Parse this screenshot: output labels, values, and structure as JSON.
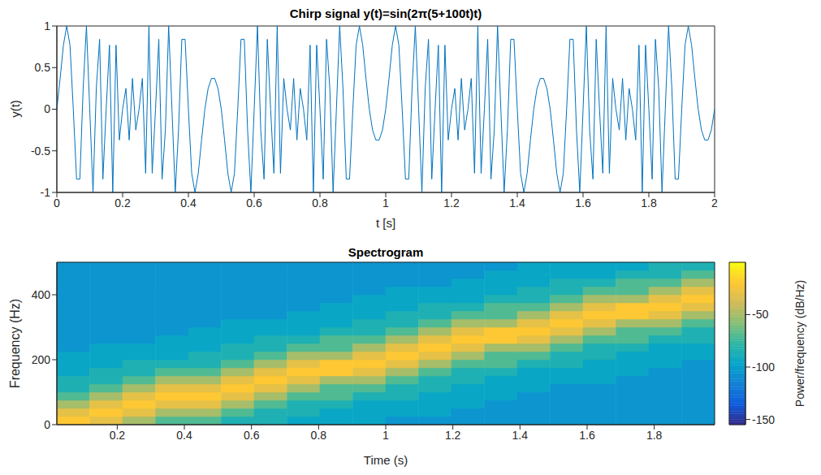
{
  "chart_data": [
    {
      "type": "line",
      "title": "Chirp signal y(t)=sin(2π(5+100t)t)",
      "xlabel": "t [s]",
      "ylabel": "y(t)",
      "color": "#0072bd",
      "x": [
        0,
        0.01,
        0.02,
        0.03,
        0.04,
        0.05,
        0.06,
        0.07,
        0.08,
        0.09,
        0.1,
        0.11,
        0.12,
        0.13,
        0.14,
        0.15,
        0.16,
        0.17,
        0.18,
        0.19,
        0.2,
        0.21,
        0.22,
        0.23,
        0.24,
        0.25,
        0.26,
        0.27,
        0.28,
        0.29,
        0.3,
        0.31,
        0.32,
        0.33,
        0.34,
        0.35,
        0.36,
        0.37,
        0.38,
        0.39,
        0.4,
        0.41,
        0.42,
        0.43,
        0.44,
        0.45,
        0.46,
        0.47,
        0.48,
        0.49,
        0.5,
        0.51,
        0.52,
        0.53,
        0.54,
        0.55,
        0.56,
        0.57,
        0.58,
        0.59,
        0.6,
        0.61,
        0.62,
        0.63,
        0.64,
        0.65,
        0.66,
        0.67,
        0.68,
        0.69,
        0.7,
        0.71,
        0.72,
        0.73,
        0.74,
        0.75,
        0.76,
        0.77,
        0.78,
        0.79,
        0.8,
        0.81,
        0.82,
        0.83,
        0.84,
        0.85,
        0.86,
        0.87,
        0.88,
        0.89,
        0.9,
        0.91,
        0.92,
        0.93,
        0.94,
        0.95,
        0.96,
        0.97,
        0.98,
        0.99,
        1,
        1.01,
        1.02,
        1.03,
        1.04,
        1.05,
        1.06,
        1.07,
        1.08,
        1.09,
        1.1,
        1.11,
        1.12,
        1.13,
        1.14,
        1.15,
        1.16,
        1.17,
        1.18,
        1.19,
        1.2,
        1.21,
        1.22,
        1.23,
        1.24,
        1.25,
        1.26,
        1.27,
        1.28,
        1.29,
        1.3,
        1.31,
        1.32,
        1.33,
        1.34,
        1.35,
        1.36,
        1.37,
        1.38,
        1.39,
        1.4,
        1.41,
        1.42,
        1.43,
        1.44,
        1.45,
        1.46,
        1.47,
        1.48,
        1.49,
        1.5,
        1.51,
        1.52,
        1.53,
        1.54,
        1.55,
        1.56,
        1.57,
        1.58,
        1.59,
        1.6,
        1.61,
        1.62,
        1.63,
        1.64,
        1.65,
        1.66,
        1.67,
        1.68,
        1.69,
        1.7,
        1.71,
        1.72,
        1.73,
        1.74,
        1.75,
        1.76,
        1.77,
        1.78,
        1.79,
        1.8,
        1.81,
        1.82,
        1.83,
        1.84,
        1.85,
        1.86,
        1.87,
        1.88,
        1.89,
        1.9,
        1.91,
        1.92,
        1.93,
        1.94,
        1.95,
        1.96,
        1.97,
        1.98,
        1.99,
        2
      ],
      "values": [
        0,
        0.37,
        0.77,
        1,
        0.77,
        0,
        -0.84,
        -0.84,
        0.25,
        1,
        0,
        -1,
        0.25,
        0.84,
        -0.84,
        0,
        0.77,
        -1,
        0.77,
        -0.37,
        0,
        0.25,
        -0.37,
        0.37,
        -0.25,
        0,
        0.37,
        -0.77,
        1,
        -0.77,
        0,
        0.84,
        -0.84,
        -0.25,
        1,
        0,
        -1,
        -0.25,
        0.84,
        0.84,
        0,
        -0.77,
        -1,
        -0.77,
        -0.37,
        0,
        0.25,
        0.37,
        0.37,
        0.25,
        0,
        -0.37,
        -0.77,
        -1,
        -0.77,
        0,
        0.84,
        0.84,
        -0.25,
        -1,
        0,
        1,
        -0.25,
        -0.84,
        0.84,
        0,
        -0.77,
        1,
        -0.77,
        0.37,
        0,
        -0.25,
        0.37,
        -0.37,
        0.25,
        0,
        -0.37,
        0.77,
        -1,
        0.77,
        0,
        -0.84,
        0.84,
        0.25,
        -1,
        0,
        1,
        0.25,
        -0.84,
        -0.84,
        0,
        0.77,
        1,
        0.77,
        0.37,
        0,
        -0.25,
        -0.37,
        -0.37,
        -0.25,
        0,
        0.37,
        0.77,
        1,
        0.77,
        0,
        -0.84,
        -0.84,
        0.25,
        1,
        0,
        -1,
        0.25,
        0.84,
        -0.84,
        0,
        0.77,
        -1,
        0.77,
        -0.37,
        0,
        0.25,
        -0.37,
        0.37,
        -0.25,
        0,
        0.37,
        -0.77,
        1,
        -0.77,
        0,
        0.84,
        -0.84,
        -0.25,
        1,
        0,
        -1,
        -0.25,
        0.84,
        0.84,
        0,
        -0.77,
        -1,
        -0.77,
        -0.37,
        0,
        0.25,
        0.37,
        0.37,
        0.25,
        0,
        -0.37,
        -0.77,
        -1,
        -0.77,
        0,
        0.84,
        0.84,
        -0.25,
        -1,
        0,
        1,
        -0.25,
        -0.84,
        0.84,
        0,
        -0.77,
        1,
        -0.77,
        0.37,
        0,
        -0.25,
        0.37,
        -0.37,
        0.25,
        0,
        -0.37,
        0.77,
        -1,
        0.77,
        0,
        -0.84,
        0.84,
        0.25,
        -1,
        0,
        1,
        0.25,
        -0.84,
        -0.84,
        0,
        0.77,
        1,
        0.77,
        0.37,
        0,
        -0.25,
        -0.37,
        -0.37,
        -0.25,
        0
      ],
      "xlim": [
        0,
        2
      ],
      "xticks": [
        0,
        0.2,
        0.4,
        0.6,
        0.8,
        1,
        1.2,
        1.4,
        1.6,
        1.8,
        2
      ],
      "ylim": [
        -1,
        1
      ],
      "yticks": [
        -1,
        -0.5,
        0,
        0.5,
        1
      ]
    },
    {
      "type": "heatmap",
      "title": "Spectrogram",
      "xlabel": "Time (s)",
      "ylabel": "Frequency (Hz)",
      "time_bins": [
        0.02,
        0.118,
        0.216,
        0.314,
        0.412,
        0.51,
        0.608,
        0.706,
        0.804,
        0.902,
        1,
        1.098,
        1.196,
        1.294,
        1.392,
        1.49,
        1.588,
        1.686,
        1.784,
        1.882,
        1.98
      ],
      "freq_bins": [
        0,
        25,
        50,
        75,
        100,
        125,
        150,
        175,
        200,
        225,
        250,
        275,
        300,
        325,
        350,
        375,
        400,
        425,
        450,
        475,
        500
      ],
      "cells": [
        [
          -20,
          -30,
          -50,
          -70,
          -85,
          -85,
          -95,
          -95,
          -95,
          -105,
          -105,
          -105,
          -105,
          -105,
          -105,
          -105,
          -105,
          -105,
          -105,
          -105
        ],
        [
          -30,
          -20,
          -30,
          -50,
          -70,
          -85,
          -85,
          -95,
          -95,
          -95,
          -105,
          -105,
          -105,
          -105,
          -105,
          -105,
          -105,
          -105,
          -105,
          -105
        ],
        [
          -50,
          -30,
          -20,
          -30,
          -50,
          -70,
          -85,
          -85,
          -95,
          -95,
          -105,
          -105,
          -105,
          -105,
          -105,
          -105,
          -105,
          -105,
          -105,
          -105
        ],
        [
          -70,
          -50,
          -30,
          -20,
          -30,
          -50,
          -70,
          -85,
          -95,
          -95,
          -95,
          -105,
          -105,
          -105,
          -105,
          -105,
          -105,
          -105,
          -105,
          -105
        ],
        [
          -70,
          -50,
          -30,
          -20,
          -30,
          -50,
          -70,
          -85,
          -85,
          -95,
          -95,
          -95,
          -105,
          -105,
          -105,
          -105,
          -105,
          -105,
          -105,
          -105
        ],
        [
          -85,
          -70,
          -50,
          -30,
          -20,
          -30,
          -50,
          -70,
          -85,
          -85,
          -95,
          -95,
          -95,
          -105,
          -105,
          -105,
          -105,
          -105,
          -105,
          -105
        ],
        [
          -85,
          -85,
          -70,
          -50,
          -30,
          -20,
          -30,
          -50,
          -70,
          -85,
          -85,
          -95,
          -95,
          -105,
          -105,
          -105,
          -105,
          -105,
          -105,
          -105
        ],
        [
          -95,
          -85,
          -85,
          -70,
          -50,
          -30,
          -20,
          -30,
          -50,
          -70,
          -85,
          -95,
          -95,
          -95,
          -105,
          -105,
          -105,
          -105,
          -105,
          -105
        ],
        [
          -95,
          -95,
          -85,
          -70,
          -70,
          -50,
          -20,
          -20,
          -50,
          -70,
          -70,
          -85,
          -95,
          -95,
          -95,
          -105,
          -105,
          -105,
          -105,
          -105
        ],
        [
          -95,
          -95,
          -95,
          -85,
          -70,
          -50,
          -30,
          -20,
          -30,
          -50,
          -70,
          -85,
          -85,
          -95,
          -95,
          -95,
          -105,
          -105,
          -105,
          -105
        ],
        [
          -105,
          -95,
          -95,
          -85,
          -85,
          -70,
          -50,
          -30,
          -20,
          -30,
          -50,
          -70,
          -85,
          -85,
          -95,
          -95,
          -95,
          -105,
          -105,
          -105
        ],
        [
          -105,
          -95,
          -95,
          -95,
          -85,
          -85,
          -70,
          -50,
          -30,
          -20,
          -30,
          -50,
          -70,
          -85,
          -85,
          -95,
          -95,
          -105,
          -105,
          -105
        ],
        [
          -105,
          -105,
          -95,
          -95,
          -95,
          -85,
          -85,
          -70,
          -50,
          -30,
          -20,
          -30,
          -50,
          -70,
          -85,
          -95,
          -95,
          -95,
          -105,
          -105
        ],
        [
          -105,
          -105,
          -105,
          -95,
          -95,
          -95,
          -85,
          -70,
          -70,
          -50,
          -20,
          -20,
          -50,
          -70,
          -70,
          -85,
          -95,
          -95,
          -95,
          -105
        ],
        [
          -105,
          -105,
          -105,
          -105,
          -95,
          -95,
          -95,
          -85,
          -70,
          -50,
          -30,
          -20,
          -30,
          -50,
          -70,
          -85,
          -85,
          -95,
          -95,
          -95
        ],
        [
          -105,
          -105,
          -105,
          -105,
          -105,
          -95,
          -95,
          -85,
          -85,
          -70,
          -50,
          -30,
          -20,
          -30,
          -50,
          -70,
          -85,
          -85,
          -95,
          -95
        ],
        [
          -105,
          -105,
          -105,
          -105,
          -105,
          -95,
          -95,
          -95,
          -85,
          -85,
          -70,
          -50,
          -30,
          -20,
          -30,
          -50,
          -70,
          -85,
          -95,
          -95
        ],
        [
          -105,
          -105,
          -105,
          -105,
          -105,
          -105,
          -95,
          -95,
          -95,
          -85,
          -70,
          -70,
          -50,
          -20,
          -20,
          -50,
          -70,
          -70,
          -85,
          -95
        ],
        [
          -105,
          -105,
          -105,
          -105,
          -105,
          -105,
          -105,
          -95,
          -95,
          -95,
          -85,
          -70,
          -50,
          -30,
          -20,
          -30,
          -50,
          -70,
          -85,
          -85
        ],
        [
          -105,
          -105,
          -105,
          -105,
          -105,
          -105,
          -105,
          -105,
          -95,
          -95,
          -85,
          -85,
          -70,
          -50,
          -30,
          -20,
          -30,
          -50,
          -70,
          -85
        ]
      ],
      "xlim": [
        0.02,
        1.98
      ],
      "xticks": [
        0.2,
        0.4,
        0.6,
        0.8,
        1,
        1.2,
        1.4,
        1.6,
        1.8
      ],
      "ylim": [
        0,
        500
      ],
      "yticks": [
        0,
        200,
        400
      ],
      "colorbar": {
        "label": "Power/frequency (dB/Hz)",
        "range": [
          -155,
          0
        ],
        "ticks": [
          -150,
          -100,
          -50
        ]
      }
    }
  ]
}
